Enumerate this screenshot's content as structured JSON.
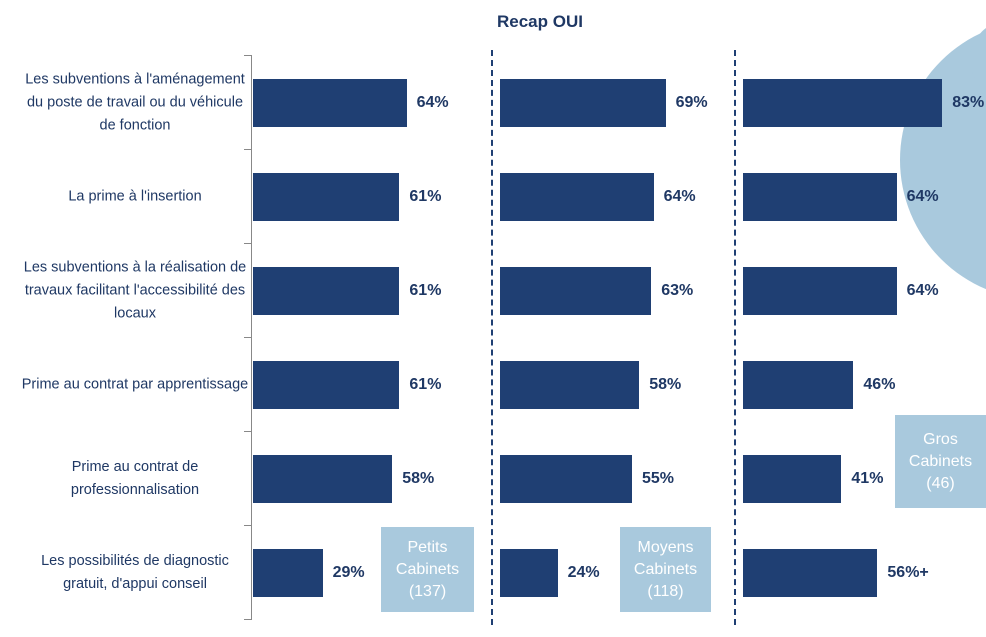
{
  "chart_data": {
    "type": "bar",
    "orientation": "horizontal",
    "title": "Recap OUI",
    "categories": [
      "Les subventions à l'aménagement du poste de travail ou du véhicule de fonction",
      "La prime à l'insertion",
      "Les subventions à la réalisation de travaux facilitant l'accessibilité des locaux",
      "Prime au contrat par apprentissage",
      "Prime au contrat de professionnalisation",
      "Les possibilités de diagnostic gratuit, d'appui conseil"
    ],
    "series": [
      {
        "name": "Petits Cabinets (137)",
        "color": "#1f3f73",
        "values": [
          64,
          61,
          61,
          61,
          58,
          29
        ],
        "value_labels": [
          "64%",
          "61%",
          "61%",
          "61%",
          "58%",
          "29%"
        ]
      },
      {
        "name": "Moyens Cabinets (118)",
        "color": "#1f3f73",
        "values": [
          69,
          64,
          63,
          58,
          55,
          24
        ],
        "value_labels": [
          "69%",
          "64%",
          "63%",
          "58%",
          "55%",
          "24%"
        ]
      },
      {
        "name": "Gros Cabinets (46)",
        "color": "#1f3f73",
        "values": [
          83,
          64,
          64,
          46,
          41,
          56
        ],
        "value_labels": [
          "83%",
          "64%",
          "64%",
          "46%",
          "41%",
          "56%+"
        ]
      }
    ]
  }
}
